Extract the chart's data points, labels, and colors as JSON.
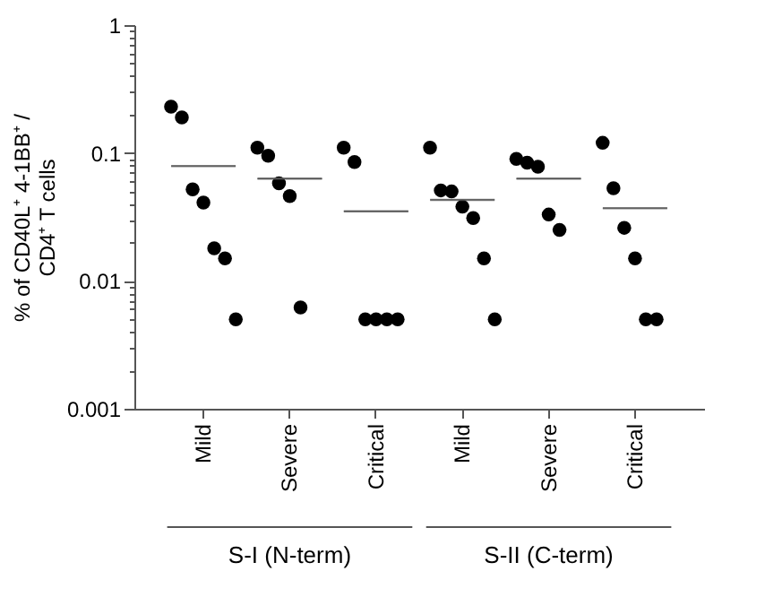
{
  "chart_data": {
    "type": "scatter",
    "ylabel": "% of CD40L⁺ 4-1BB⁺ /\nCD4⁺ T cells",
    "categories": [
      "Mild",
      "Severe",
      "Critical",
      "Mild",
      "Severe",
      "Critical"
    ],
    "log": "y",
    "ylim": [
      0.001,
      1
    ],
    "yticks": [
      0.001,
      {
        "value": 0.002,
        "label": null
      },
      {
        "value": 0.003,
        "label": null
      },
      {
        "value": 0.004,
        "label": null
      },
      {
        "value": 0.005,
        "label": null
      },
      {
        "value": 0.006,
        "label": null
      },
      {
        "value": 0.007,
        "label": null
      },
      {
        "value": 0.008,
        "label": null
      },
      {
        "value": 0.009,
        "label": null
      },
      0.01,
      {
        "value": 0.02,
        "label": null
      },
      {
        "value": 0.03,
        "label": null
      },
      {
        "value": 0.04,
        "label": null
      },
      {
        "value": 0.05,
        "label": null
      },
      {
        "value": 0.06,
        "label": null
      },
      {
        "value": 0.07,
        "label": null
      },
      {
        "value": 0.08,
        "label": null
      },
      {
        "value": 0.09,
        "label": null
      },
      0.1,
      {
        "value": 0.2,
        "label": null
      },
      {
        "value": 0.3,
        "label": null
      },
      {
        "value": 0.4,
        "label": null
      },
      {
        "value": 0.5,
        "label": null
      },
      {
        "value": 0.6,
        "label": null
      },
      {
        "value": 0.7,
        "label": null
      },
      {
        "value": 0.8,
        "label": null
      },
      {
        "value": 0.9,
        "label": null
      },
      1
    ],
    "grid": false,
    "legend": false,
    "marker": "circle",
    "series": [
      {
        "type": "scatter",
        "color": "#000000",
        "values": [
          0.23,
          0.11,
          0.11,
          0.11,
          0.09,
          0.12
        ]
      },
      {
        "type": "scatter",
        "color": "#000000",
        "values": [
          0.19,
          0.095,
          0.085,
          0.051,
          0.084,
          0.053
        ]
      },
      {
        "type": "scatter",
        "color": "#000000",
        "values": [
          0.052,
          0.058,
          0.005,
          0.05,
          0.078,
          0.026
        ]
      },
      {
        "type": "scatter",
        "color": "#000000",
        "values": [
          0.041,
          0.046,
          0.005,
          0.038,
          0.033,
          0.015
        ]
      },
      {
        "type": "scatter",
        "color": "#000000",
        "values": [
          0.018,
          0.0062,
          0.005,
          0.031,
          0.025,
          0.005
        ]
      },
      {
        "type": "scatter",
        "color": "#000000",
        "values": [
          0.015,
          null,
          0.005,
          0.015,
          null,
          0.005
        ]
      },
      {
        "type": "scatter",
        "color": "#000000",
        "values": [
          0.005,
          null,
          null,
          0.005,
          null,
          null
        ]
      },
      {
        "type": "box",
        "color": "#555555",
        "boxes": [
          {
            "low": 0.079,
            "q1": 0.079,
            "median": 0.079,
            "q3": 0.079,
            "high": 0.079
          },
          {
            "low": 0.063,
            "q1": 0.063,
            "median": 0.063,
            "q3": 0.063,
            "high": 0.063
          },
          {
            "low": 0.035,
            "q1": 0.035,
            "median": 0.035,
            "q3": 0.035,
            "high": 0.035
          },
          {
            "low": 0.043,
            "q1": 0.043,
            "median": 0.043,
            "q3": 0.043,
            "high": 0.043
          },
          {
            "low": 0.063,
            "q1": 0.063,
            "median": 0.063,
            "q3": 0.063,
            "high": 0.063
          },
          {
            "low": 0.037,
            "q1": 0.037,
            "median": 0.037,
            "q3": 0.037,
            "high": 0.037
          }
        ]
      }
    ],
    "annotations": [
      "S-I (N-term)",
      "S-II (C-term)"
    ]
  }
}
